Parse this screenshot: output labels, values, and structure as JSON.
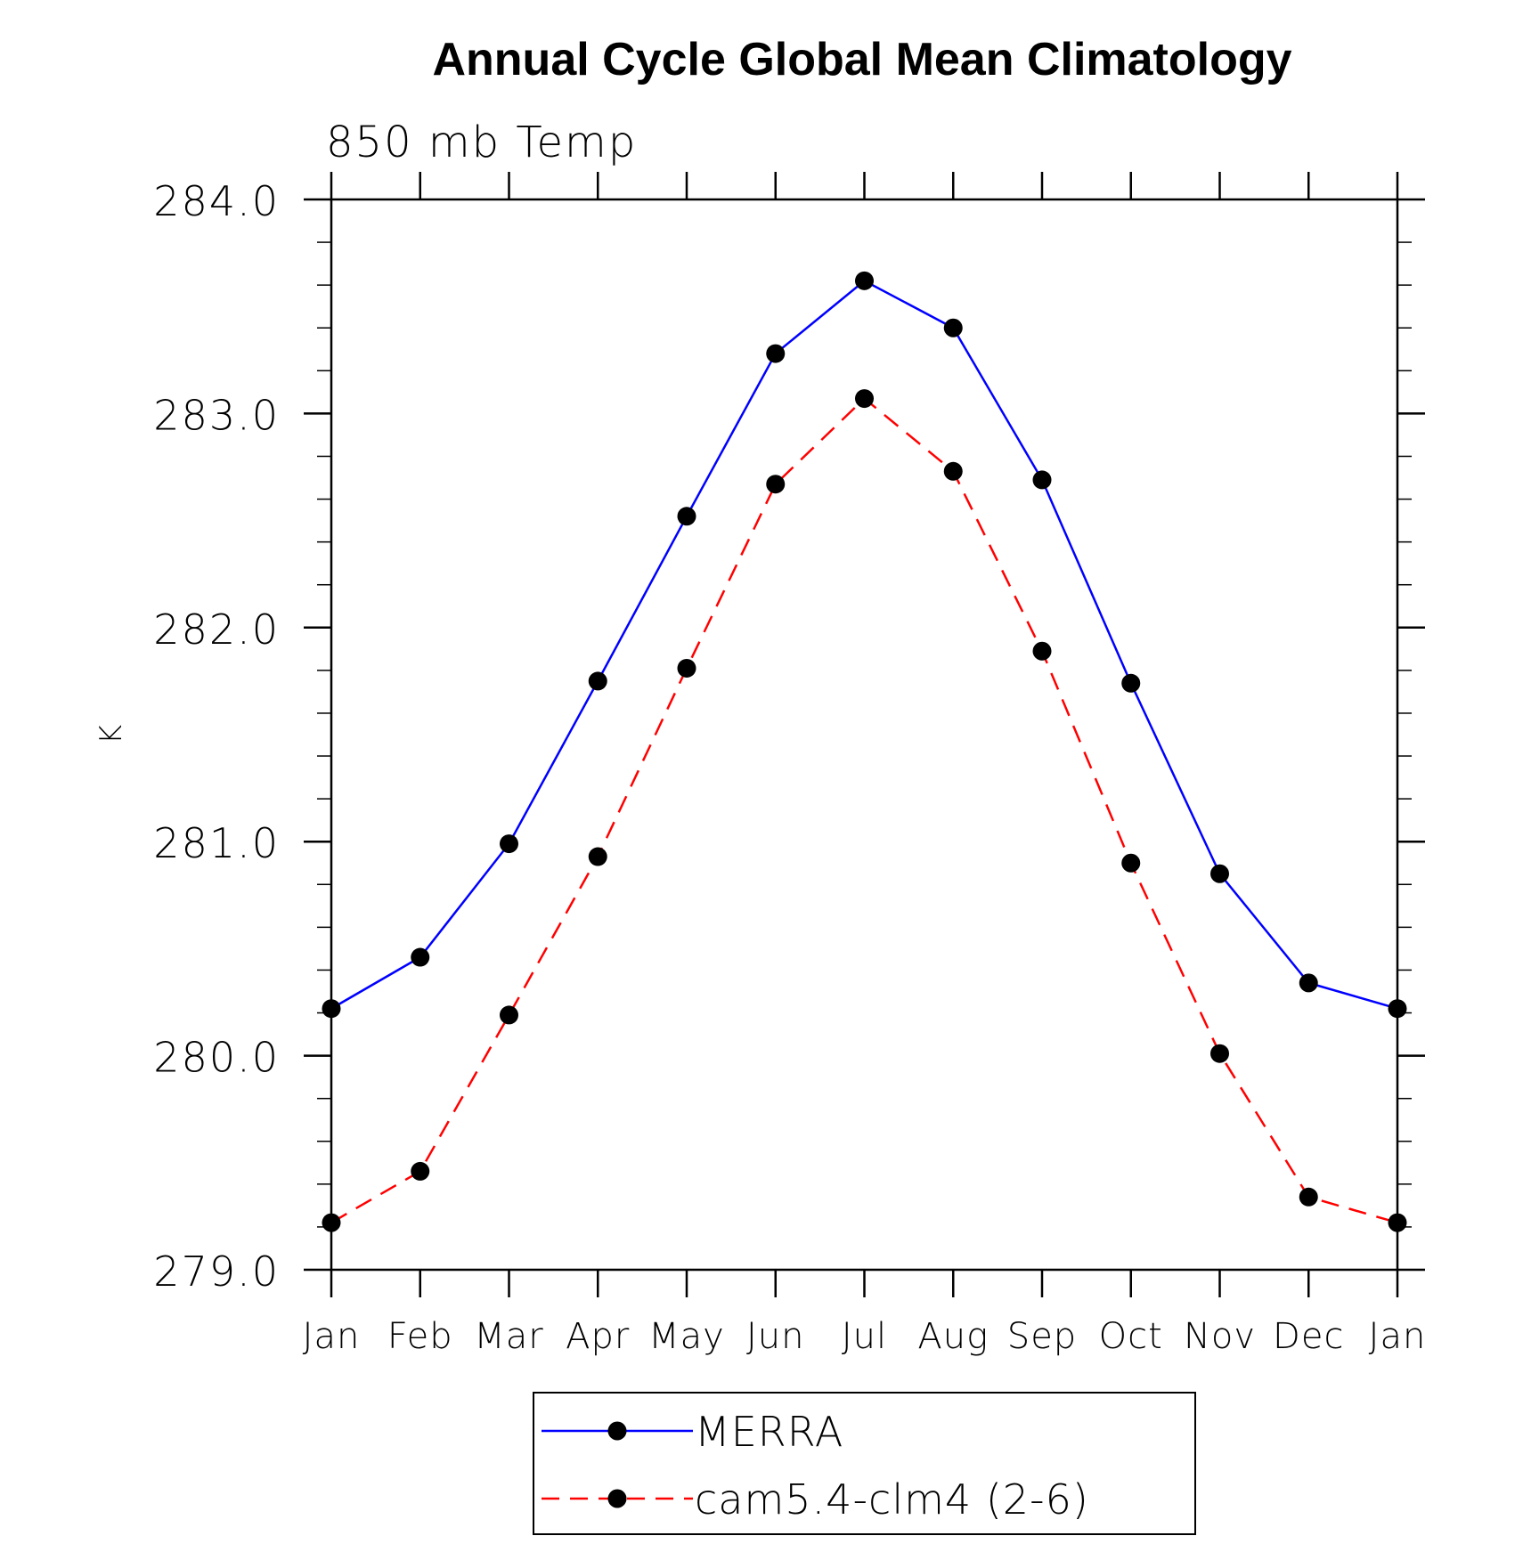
{
  "chart_data": {
    "type": "line",
    "title": "Annual Cycle Global Mean Climatology",
    "subtitle": "850 mb Temp",
    "xlabel": "",
    "ylabel": "K",
    "categories": [
      "Jan",
      "Feb",
      "Mar",
      "Apr",
      "May",
      "Jun",
      "Jul",
      "Aug",
      "Sep",
      "Oct",
      "Nov",
      "Dec",
      "Jan"
    ],
    "ylim": [
      279.0,
      284.0
    ],
    "y_ticks": [
      "279.0",
      "280.0",
      "281.0",
      "282.0",
      "283.0",
      "284.0"
    ],
    "y_tick_values": [
      279.0,
      280.0,
      281.0,
      282.0,
      283.0,
      284.0
    ],
    "y_minor_step": 0.2,
    "grid": false,
    "legend_position": "bottom-center",
    "series": [
      {
        "name": "MERRA",
        "color": "#0000ff",
        "line_style": "solid",
        "marker": "filled-circle",
        "marker_color": "#000000",
        "values": [
          280.22,
          280.46,
          280.99,
          281.75,
          282.52,
          283.28,
          283.62,
          283.4,
          282.69,
          281.74,
          280.85,
          280.34,
          280.22
        ]
      },
      {
        "name": "cam5.4-clm4 (2-6)",
        "color": "#ff0000",
        "line_style": "dashed",
        "marker": "filled-circle",
        "marker_color": "#000000",
        "values": [
          279.22,
          279.46,
          280.19,
          280.93,
          281.81,
          282.67,
          283.07,
          282.73,
          281.89,
          280.9,
          280.01,
          279.34,
          279.22
        ]
      }
    ]
  }
}
